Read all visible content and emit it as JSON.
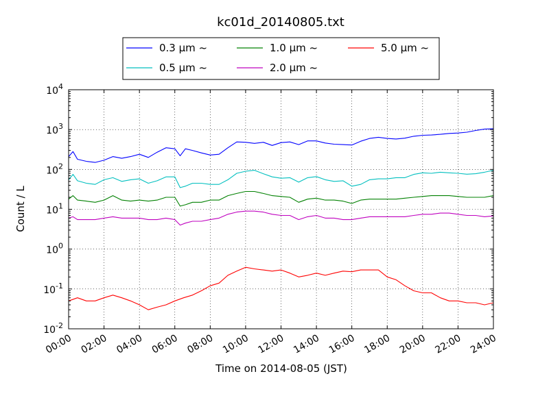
{
  "chart_data": {
    "type": "line",
    "title": "kc01d_20140805.txt",
    "xlabel": "Time on 2014-08-05 (JST)",
    "ylabel": "Count / L",
    "xlim_hours": [
      0,
      24
    ],
    "x_tick_labels": [
      "00:00",
      "02:00",
      "04:00",
      "06:00",
      "08:00",
      "10:00",
      "12:00",
      "14:00",
      "16:00",
      "18:00",
      "20:00",
      "22:00",
      "24:00"
    ],
    "y_scale": "log",
    "ylim": [
      0.01,
      10000
    ],
    "y_ticks": [
      {
        "base": "10",
        "exp": "-2"
      },
      {
        "base": "10",
        "exp": "-1"
      },
      {
        "base": "10",
        "exp": "0"
      },
      {
        "base": "10",
        "exp": "1"
      },
      {
        "base": "10",
        "exp": "2"
      },
      {
        "base": "10",
        "exp": "3"
      },
      {
        "base": "10",
        "exp": "4"
      }
    ],
    "grid": true,
    "legend_placement": "top-center",
    "series": [
      {
        "name": "0.3 μm ~",
        "color": "#0000ff",
        "x": [
          0,
          0.25,
          0.5,
          1,
          1.5,
          2,
          2.5,
          3,
          3.5,
          4,
          4.5,
          5,
          5.5,
          6,
          6.3,
          6.6,
          7,
          7.5,
          8,
          8.5,
          9,
          9.5,
          10,
          10.5,
          11,
          11.5,
          12,
          12.5,
          13,
          13.5,
          14,
          14.5,
          15,
          15.5,
          16,
          16.5,
          17,
          17.5,
          18,
          18.5,
          19,
          19.5,
          20,
          20.5,
          21,
          21.5,
          22,
          22.5,
          23,
          23.5,
          24
        ],
        "y": [
          210,
          280,
          180,
          160,
          150,
          170,
          210,
          190,
          210,
          240,
          200,
          270,
          350,
          330,
          220,
          330,
          300,
          260,
          230,
          240,
          350,
          490,
          480,
          450,
          480,
          400,
          470,
          490,
          420,
          520,
          520,
          460,
          430,
          420,
          410,
          510,
          600,
          640,
          600,
          580,
          610,
          680,
          720,
          730,
          760,
          800,
          820,
          860,
          950,
          1030,
          1050
        ]
      },
      {
        "name": "0.5 μm ~",
        "color": "#00bfbf",
        "x": [
          0,
          0.25,
          0.5,
          1,
          1.5,
          2,
          2.5,
          3,
          3.5,
          4,
          4.5,
          5,
          5.5,
          6,
          6.3,
          6.6,
          7,
          7.5,
          8,
          8.5,
          9,
          9.5,
          10,
          10.5,
          11,
          11.5,
          12,
          12.5,
          13,
          13.5,
          14,
          14.5,
          15,
          15.5,
          16,
          16.5,
          17,
          17.5,
          18,
          18.5,
          19,
          19.5,
          20,
          20.5,
          21,
          21.5,
          22,
          22.5,
          23,
          23.5,
          24
        ],
        "y": [
          55,
          75,
          52,
          45,
          42,
          55,
          62,
          50,
          55,
          58,
          45,
          52,
          65,
          65,
          35,
          38,
          45,
          45,
          42,
          42,
          55,
          80,
          90,
          95,
          78,
          65,
          60,
          62,
          48,
          62,
          66,
          55,
          50,
          52,
          38,
          42,
          55,
          58,
          58,
          62,
          62,
          75,
          82,
          80,
          85,
          82,
          80,
          76,
          78,
          85,
          95
        ]
      },
      {
        "name": "1.0 μm ~",
        "color": "#008000",
        "x": [
          0,
          0.25,
          0.5,
          1,
          1.5,
          2,
          2.5,
          3,
          3.5,
          4,
          4.5,
          5,
          5.5,
          6,
          6.3,
          6.6,
          7,
          7.5,
          8,
          8.5,
          9,
          9.5,
          10,
          10.5,
          11,
          11.5,
          12,
          12.5,
          13,
          13.5,
          14,
          14.5,
          15,
          15.5,
          16,
          16.5,
          17,
          17.5,
          18,
          18.5,
          19,
          19.5,
          20,
          20.5,
          21,
          21.5,
          22,
          22.5,
          23,
          23.5,
          24
        ],
        "y": [
          18,
          22,
          17,
          16,
          15,
          17,
          22,
          17,
          16,
          17,
          16,
          17,
          20,
          20,
          12,
          13,
          15,
          15,
          17,
          17,
          22,
          25,
          28,
          28,
          25,
          22,
          21,
          20,
          15,
          18,
          19,
          17,
          17,
          16,
          14,
          17,
          18,
          18,
          18,
          18,
          19,
          20,
          21,
          22,
          22,
          22,
          21,
          20,
          20,
          20,
          22
        ]
      },
      {
        "name": "2.0 μm ~",
        "color": "#bf00bf",
        "x": [
          0,
          0.25,
          0.5,
          1,
          1.5,
          2,
          2.5,
          3,
          3.5,
          4,
          4.5,
          5,
          5.5,
          6,
          6.3,
          6.6,
          7,
          7.5,
          8,
          8.5,
          9,
          9.5,
          10,
          10.5,
          11,
          11.5,
          12,
          12.5,
          13,
          13.5,
          14,
          14.5,
          15,
          15.5,
          16,
          16.5,
          17,
          17.5,
          18,
          18.5,
          19,
          19.5,
          20,
          20.5,
          21,
          21.5,
          22,
          22.5,
          23,
          23.5,
          24
        ],
        "y": [
          6,
          6.5,
          5.5,
          5.5,
          5.5,
          6,
          6.5,
          6,
          6,
          6,
          5.5,
          5.5,
          6,
          5.5,
          4,
          4.5,
          5,
          5,
          5.5,
          6,
          7.5,
          8.5,
          9,
          9,
          8.5,
          7.5,
          7,
          7,
          5.5,
          6.5,
          7,
          6,
          6,
          5.5,
          5.5,
          6,
          6.5,
          6.5,
          6.5,
          6.5,
          6.5,
          7,
          7.5,
          7.5,
          8,
          8,
          7.5,
          7,
          7,
          6.5,
          6.8
        ]
      },
      {
        "name": "5.0 μm ~",
        "color": "#ff0000",
        "x": [
          0,
          0.5,
          1,
          1.5,
          2,
          2.5,
          3,
          3.5,
          4,
          4.5,
          5,
          5.5,
          6,
          6.5,
          7,
          7.5,
          8,
          8.5,
          9,
          9.5,
          10,
          10.5,
          11,
          11.5,
          12,
          12.5,
          13,
          13.5,
          14,
          14.5,
          15,
          15.5,
          16,
          16.5,
          17,
          17.5,
          18,
          18.5,
          19,
          19.5,
          20,
          20.5,
          21,
          21.5,
          22,
          22.5,
          23,
          23.5,
          24
        ],
        "y": [
          0.05,
          0.06,
          0.05,
          0.05,
          0.06,
          0.07,
          0.06,
          0.05,
          0.04,
          0.03,
          0.035,
          0.04,
          0.05,
          0.06,
          0.07,
          0.09,
          0.12,
          0.14,
          0.22,
          0.28,
          0.35,
          0.32,
          0.3,
          0.28,
          0.3,
          0.25,
          0.2,
          0.22,
          0.25,
          0.22,
          0.25,
          0.28,
          0.27,
          0.3,
          0.3,
          0.3,
          0.2,
          0.17,
          0.12,
          0.09,
          0.08,
          0.08,
          0.06,
          0.05,
          0.05,
          0.045,
          0.045,
          0.04,
          0.045
        ]
      }
    ]
  }
}
